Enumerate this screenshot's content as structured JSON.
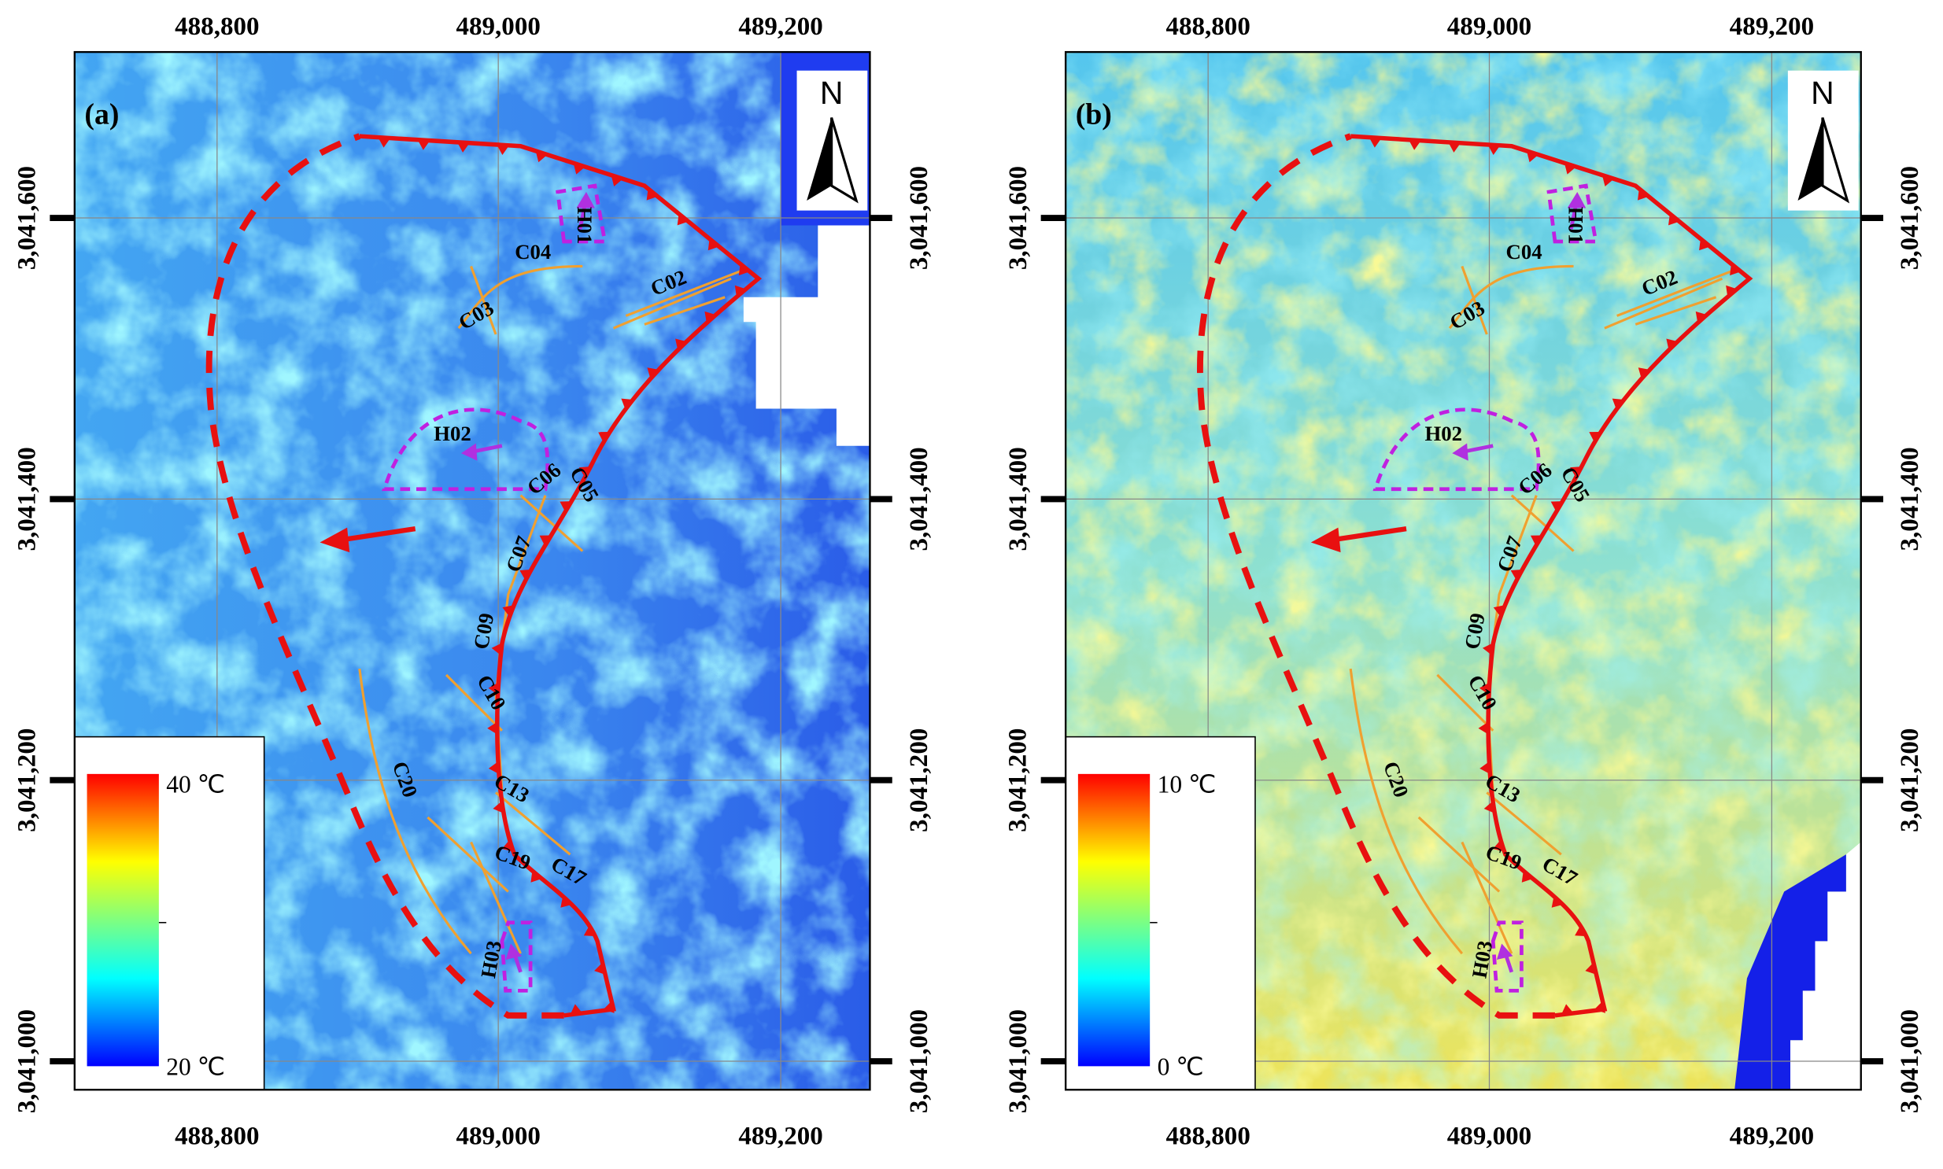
{
  "panels": [
    {
      "label": "(a)",
      "x_tick_labels": [
        "488,800",
        "489,000",
        "489,200"
      ],
      "y_tick_labels": [
        "3,041,000",
        "3,041,200",
        "3,041,400",
        "3,041,600"
      ],
      "colorbar": {
        "max_label": "40 ℃",
        "min_label": "20 ℃"
      },
      "north_label": "N",
      "feature_labels": [
        "C02",
        "C03",
        "C04",
        "H01",
        "H02",
        "C05",
        "C06",
        "C07",
        "C09",
        "C10",
        "C13",
        "C17",
        "C19",
        "C20",
        "H03"
      ]
    },
    {
      "label": "(b)",
      "x_tick_labels": [
        "488,800",
        "489,000",
        "489,200"
      ],
      "y_tick_labels": [
        "3,041,000",
        "3,041,200",
        "3,041,400",
        "3,041,600"
      ],
      "colorbar": {
        "max_label": "10 ℃",
        "min_label": "0 ℃"
      },
      "north_label": "N",
      "feature_labels": [
        "C02",
        "C03",
        "C04",
        "H01",
        "H02",
        "C05",
        "C06",
        "C07",
        "C09",
        "C10",
        "C13",
        "C17",
        "C19",
        "C20",
        "H03"
      ]
    }
  ]
}
